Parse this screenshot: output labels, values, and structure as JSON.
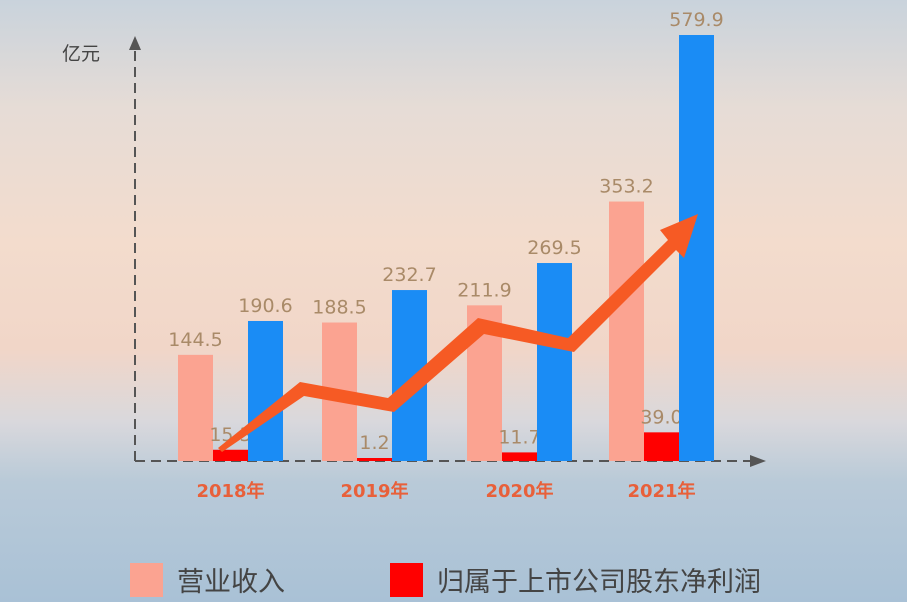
{
  "chart_data": {
    "type": "bar",
    "ylabel": "亿元",
    "categories": [
      "2018年",
      "2019年",
      "2020年",
      "2021年"
    ],
    "series": [
      {
        "name": "营业收入",
        "color": "#fba391",
        "values": [
          144.5,
          188.5,
          211.9,
          353.2
        ]
      },
      {
        "name": "归属于上市公司股东净利润",
        "color": "#ff0000",
        "values": [
          15.3,
          1.2,
          11.7,
          39.0
        ]
      },
      {
        "color": "#1a8cf5",
        "values": [
          190.6,
          232.7,
          269.5,
          579.9
        ]
      }
    ],
    "ylim": [
      0,
      600
    ],
    "grid": false,
    "legend_position": "bottom",
    "annotation": "orange upward trend arrow"
  }
}
